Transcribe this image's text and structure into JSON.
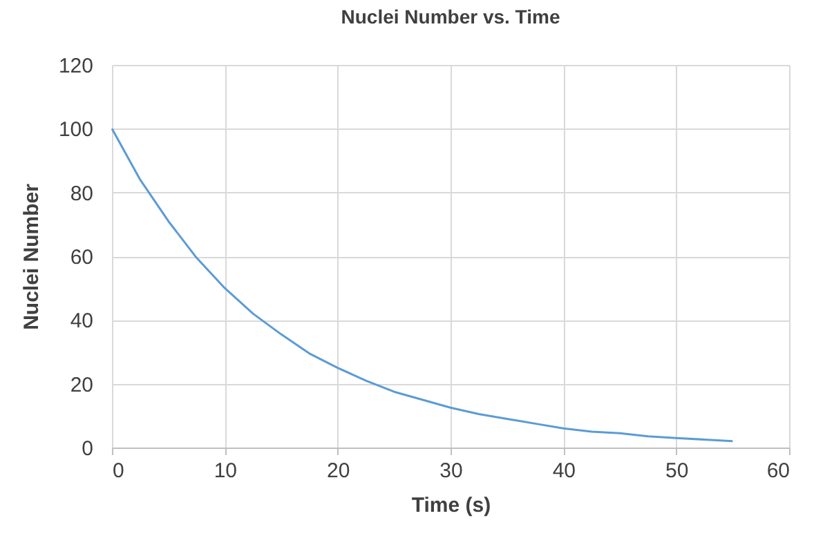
{
  "chart_data": {
    "type": "line",
    "title": "Nuclei Number vs. Time",
    "xlabel": "Time (s)",
    "ylabel": "Nuclei Number",
    "x": [
      0,
      2.5,
      5,
      7.5,
      10,
      12.5,
      15,
      17.5,
      20,
      22.5,
      25,
      27.5,
      30,
      32.5,
      35,
      37.5,
      40,
      42.5,
      45,
      47.5,
      50,
      52.5,
      55
    ],
    "series": [
      {
        "color": "#5b9bd5",
        "values": [
          100,
          84,
          71,
          59.5,
          50,
          42,
          35.5,
          29.5,
          25,
          21,
          17.5,
          15,
          12.5,
          10.5,
          9,
          7.5,
          6,
          5,
          4.5,
          3.5,
          3,
          2.5,
          2
        ]
      }
    ],
    "xlim": [
      0,
      60
    ],
    "xticks": [
      0,
      10,
      20,
      30,
      40,
      50,
      60
    ],
    "ylim": [
      0,
      120
    ],
    "yticks": [
      0,
      20,
      40,
      60,
      80,
      100,
      120
    ],
    "grid": true,
    "marker": "none",
    "line_style": "solid"
  }
}
